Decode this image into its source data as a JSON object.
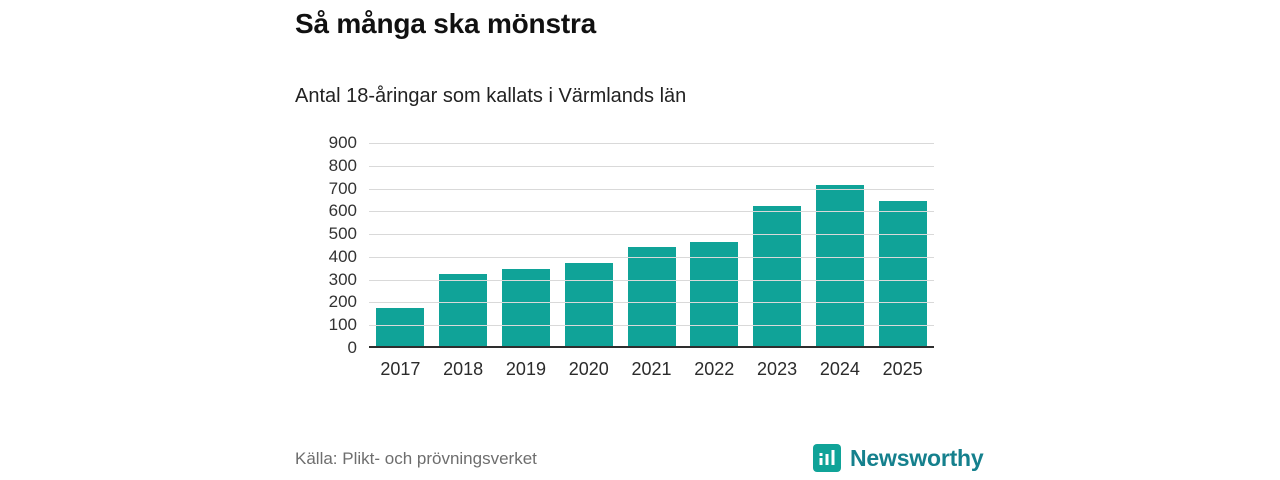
{
  "title": "Så många ska mönstra",
  "subtitle": "Antal 18-åringar som kallats i Värmlands län",
  "source": "Källa: Plikt- och prövningsverket",
  "logo": {
    "text": "Newsworthy",
    "icon": "bar-chart-icon",
    "color": "#15808d"
  },
  "colors": {
    "bar": "#10a398",
    "gridline": "#d9d9d9",
    "axis": "#2e2e2e"
  },
  "chart_data": {
    "type": "bar",
    "title": "Så många ska mönstra",
    "subtitle": "Antal 18-åringar som kallats i Värmlands län",
    "categories": [
      "2017",
      "2018",
      "2019",
      "2020",
      "2021",
      "2022",
      "2023",
      "2024",
      "2025"
    ],
    "values": [
      165,
      315,
      340,
      365,
      435,
      455,
      615,
      705,
      635
    ],
    "xlabel": "",
    "ylabel": "",
    "ylim": [
      0,
      900
    ],
    "ytick_step": 100,
    "grid": true,
    "legend": false,
    "bar_color": "#10a398"
  }
}
